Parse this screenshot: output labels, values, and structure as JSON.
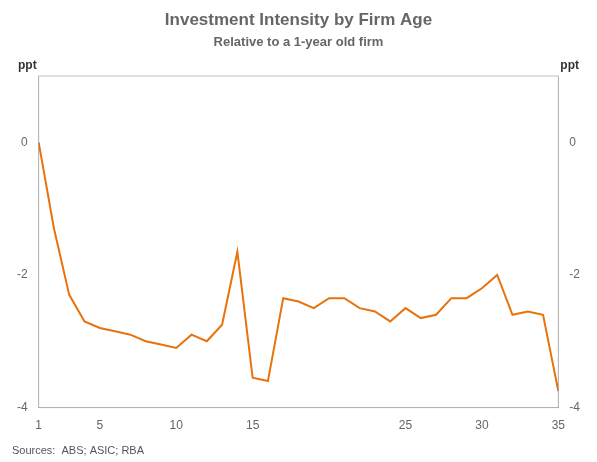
{
  "chart_data": {
    "type": "line",
    "title": "Investment Intensity by Firm Age",
    "subtitle": "Relative to a 1-year old firm",
    "ylabel": "ppt",
    "y2label": "ppt",
    "annotations": [
      "Sources:  ABS; ASIC; RBA"
    ],
    "x": [
      1,
      2,
      3,
      4,
      5,
      6,
      7,
      8,
      9,
      10,
      11,
      12,
      13,
      14,
      15,
      16,
      17,
      18,
      19,
      20,
      21,
      22,
      23,
      24,
      25,
      26,
      27,
      28,
      29,
      30,
      31,
      32,
      33,
      34,
      35
    ],
    "values": [
      0.0,
      -1.3,
      -2.3,
      -2.7,
      -2.8,
      -2.85,
      -2.9,
      -3.0,
      -3.05,
      -3.1,
      -2.9,
      -3.0,
      -2.75,
      -1.65,
      -3.55,
      -3.6,
      -2.35,
      -2.4,
      -2.5,
      -2.35,
      -2.35,
      -2.5,
      -2.55,
      -2.7,
      -2.5,
      -2.65,
      -2.6,
      -2.35,
      -2.35,
      -2.2,
      -2.0,
      -2.6,
      -2.55,
      -2.6,
      -3.75
    ],
    "color": "#E8720C",
    "xlim": [
      1,
      35
    ],
    "xticks": [
      1,
      5,
      10,
      15,
      25,
      30,
      35
    ],
    "ylim": [
      -4,
      1
    ],
    "yticks": [
      -4,
      -2,
      0
    ],
    "y2lim": [
      -4,
      1
    ],
    "y2ticks": [
      -4,
      -2,
      0
    ],
    "grid": false
  }
}
